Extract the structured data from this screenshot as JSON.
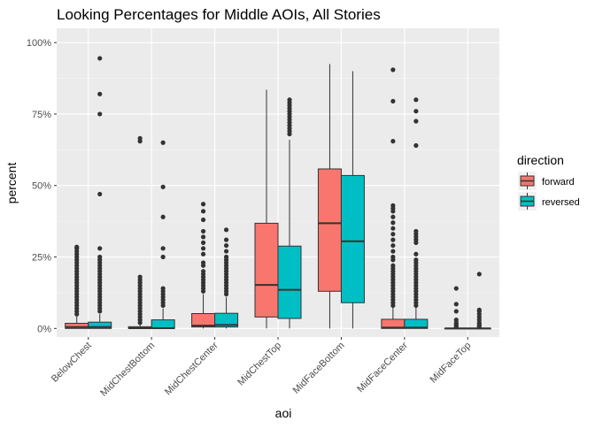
{
  "chart_data": {
    "type": "box",
    "title": "Looking Percentages for Middle AOIs, All Stories",
    "xlabel": "aoi",
    "ylabel": "percent",
    "y_ticks": [
      {
        "value": 0,
        "label": "0%"
      },
      {
        "value": 25,
        "label": "25%"
      },
      {
        "value": 50,
        "label": "50%"
      },
      {
        "value": 75,
        "label": "75%"
      },
      {
        "value": 100,
        "label": "100%"
      }
    ],
    "ylim": [
      -3,
      105
    ],
    "categories": [
      "BelowChest",
      "MidChestBottom",
      "MidChestCenter",
      "MidChestTop",
      "MidFaceBottom",
      "MidFaceCenter",
      "MidFaceTop"
    ],
    "legend": {
      "title": "direction",
      "position": "right",
      "entries": [
        {
          "name": "forward",
          "color": "#F8766D"
        },
        {
          "name": "reversed",
          "color": "#00BFC4"
        }
      ]
    },
    "series": [
      {
        "name": "forward",
        "color": "#F8766D",
        "boxes": [
          {
            "min": 0,
            "q1": 0,
            "median": 0.5,
            "q3": 1.8,
            "max": 4.5,
            "outliers": [
              5,
              6,
              7,
              8,
              9,
              10,
              11,
              12,
              13,
              14,
              15,
              16,
              17,
              18,
              19,
              20,
              21,
              22,
              23,
              24,
              25,
              26,
              27,
              28,
              28.5
            ]
          },
          {
            "min": 0,
            "q1": 0,
            "median": 0.1,
            "q3": 0.6,
            "max": 1.5,
            "outliers": [
              2,
              3,
              4,
              5,
              6,
              7,
              8,
              9,
              10,
              11,
              12,
              13,
              14,
              15,
              16,
              17,
              18,
              65.5,
              66.5
            ]
          },
          {
            "min": 0,
            "q1": 0.5,
            "median": 1.0,
            "q3": 5.2,
            "max": 12,
            "outliers": [
              13,
              14,
              15,
              16,
              17,
              18,
              19,
              20,
              22,
              23,
              26,
              28,
              30,
              32,
              34,
              38,
              41,
              43.5
            ]
          },
          {
            "min": 0,
            "q1": 4,
            "median": 15.2,
            "q3": 36.8,
            "max": 83.5,
            "outliers": []
          },
          {
            "min": 0,
            "q1": 13,
            "median": 36.8,
            "q3": 55.8,
            "max": 92.5,
            "outliers": []
          },
          {
            "min": 0,
            "q1": 0,
            "median": 0.3,
            "q3": 3.2,
            "max": 7.5,
            "outliers": [
              8,
              9,
              10,
              11,
              12,
              13,
              14,
              15,
              16,
              17,
              18,
              19,
              20,
              21,
              22,
              24,
              25,
              27,
              29,
              31,
              33,
              35,
              37,
              39,
              41,
              42,
              43,
              65.5,
              79.5,
              90.5
            ]
          },
          {
            "min": 0,
            "q1": 0,
            "median": 0,
            "q3": 0,
            "max": 0,
            "outliers": [
              0.5,
              1,
              1.5,
              2,
              3,
              6,
              8.5,
              14
            ]
          }
        ]
      },
      {
        "name": "reversed",
        "color": "#00BFC4",
        "boxes": [
          {
            "min": 0,
            "q1": 0,
            "median": 0.5,
            "q3": 2.2,
            "max": 5,
            "outliers": [
              6,
              7,
              8,
              9,
              10,
              11,
              12,
              13,
              14,
              15,
              16,
              17,
              18,
              19,
              20,
              21,
              22,
              23,
              24,
              25,
              28,
              47,
              75,
              82,
              94.5
            ]
          },
          {
            "min": 0,
            "q1": 0,
            "median": 0.1,
            "q3": 3.0,
            "max": 7,
            "outliers": [
              8,
              9,
              10,
              11,
              12,
              13,
              14,
              25,
              28,
              39,
              49.5,
              65
            ]
          },
          {
            "min": 0,
            "q1": 0.5,
            "median": 1.2,
            "q3": 5.3,
            "max": 11,
            "outliers": [
              12,
              13,
              14,
              15,
              16,
              17,
              18,
              19,
              20,
              21,
              22,
              23,
              24,
              25,
              27,
              29,
              31,
              34.5
            ]
          },
          {
            "min": 0,
            "q1": 3.5,
            "median": 13.5,
            "q3": 28.8,
            "max": 66,
            "outliers": [
              68,
              69,
              70,
              71,
              72,
              73,
              74,
              75,
              76,
              77,
              78,
              79,
              80
            ]
          },
          {
            "min": 0,
            "q1": 9,
            "median": 30.5,
            "q3": 53.5,
            "max": 90,
            "outliers": []
          },
          {
            "min": 0,
            "q1": 0,
            "median": 0.3,
            "q3": 3.2,
            "max": 7.5,
            "outliers": [
              8,
              9,
              10,
              11,
              12,
              13,
              14,
              15,
              16,
              17,
              18,
              19,
              20,
              21,
              22,
              23,
              24,
              26,
              30,
              31,
              32,
              33,
              34,
              64,
              72.5,
              76,
              80
            ]
          },
          {
            "min": 0,
            "q1": 0,
            "median": 0,
            "q3": 0,
            "max": 0,
            "outliers": [
              0.5,
              1,
              1.5,
              2,
              3,
              4,
              5,
              6,
              6.5,
              19
            ]
          }
        ]
      }
    ]
  }
}
